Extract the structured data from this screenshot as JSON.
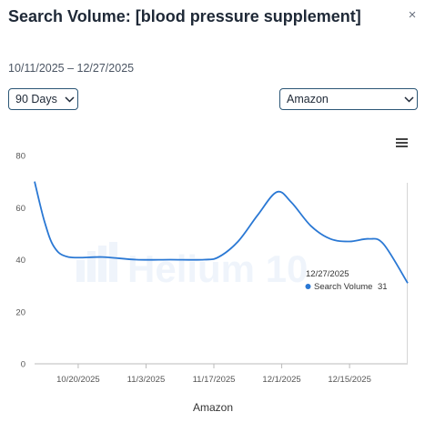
{
  "header": {
    "title": "Search Volume: [blood pressure supplement]",
    "close_symbol": "×",
    "date_range": "10/11/2025 – 12/27/2025"
  },
  "controls": {
    "period": {
      "selected": "90 Days",
      "icon": "chevron-down-icon"
    },
    "marketplace": {
      "selected": "Amazon",
      "icon": "chevron-down-icon"
    },
    "chart_menu_icon": "hamburger-menu-icon"
  },
  "watermark": {
    "text": "Helium 10",
    "logo": "helium10-logo-icon"
  },
  "tooltip": {
    "date": "12/27/2025",
    "series_label": "Search Volume",
    "value": "31",
    "color": "#2a78d4"
  },
  "chart_data": {
    "type": "line",
    "xlabel": "Amazon",
    "ylabel": "",
    "ylim": [
      0,
      80
    ],
    "yticks": [
      0,
      20,
      40,
      60,
      80
    ],
    "xtick_labels": [
      "10/20/2025",
      "11/3/2025",
      "11/17/2025",
      "12/1/2025",
      "12/15/2025"
    ],
    "x_range": [
      "10/11/2025",
      "12/27/2025"
    ],
    "grid": false,
    "line_color": "#2a78d4",
    "series": [
      {
        "name": "Search Volume",
        "points": [
          [
            "10/11/2025",
            70
          ],
          [
            "10/13/2025",
            55
          ],
          [
            "10/15/2025",
            45
          ],
          [
            "10/18/2025",
            41
          ],
          [
            "10/25/2025",
            41
          ],
          [
            "11/1/2025",
            40
          ],
          [
            "11/8/2025",
            40
          ],
          [
            "11/15/2025",
            40
          ],
          [
            "11/18/2025",
            41
          ],
          [
            "11/22/2025",
            47
          ],
          [
            "11/26/2025",
            57
          ],
          [
            "11/30/2025",
            66
          ],
          [
            "12/3/2025",
            62
          ],
          [
            "12/7/2025",
            53
          ],
          [
            "12/11/2025",
            48
          ],
          [
            "12/15/2025",
            47
          ],
          [
            "12/19/2025",
            48
          ],
          [
            "12/22/2025",
            46
          ],
          [
            "12/27/2025",
            31
          ]
        ]
      }
    ]
  }
}
